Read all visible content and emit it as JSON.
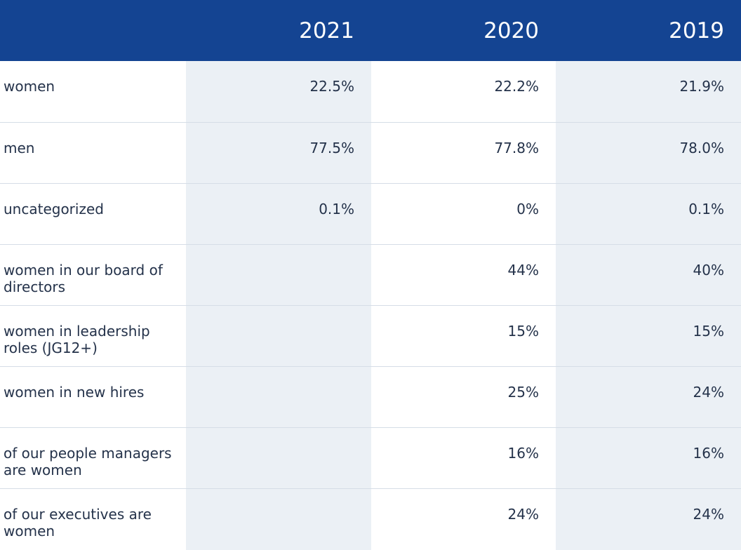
{
  "header": {
    "columns": [
      "2021",
      "2020",
      "2019"
    ]
  },
  "rows": [
    {
      "label": "women",
      "values": [
        "22.5%",
        "22.2%",
        "21.9%"
      ]
    },
    {
      "label": "men",
      "values": [
        "77.5%",
        "77.8%",
        "78.0%"
      ]
    },
    {
      "label": "uncategorized",
      "values": [
        "0.1%",
        "0%",
        "0.1%"
      ]
    },
    {
      "label": "women in our board of directors",
      "values": [
        "",
        "44%",
        "40%"
      ]
    },
    {
      "label": "women in leadership roles (JG12+)",
      "values": [
        "",
        "15%",
        "15%"
      ]
    },
    {
      "label": "women in new hires",
      "values": [
        "",
        "25%",
        "24%"
      ]
    },
    {
      "label": "of our people managers are women",
      "values": [
        "",
        "16%",
        "16%"
      ]
    },
    {
      "label": "of our executives are women",
      "values": [
        "",
        "24%",
        "24%"
      ]
    }
  ],
  "colors": {
    "header_bg": "#144492",
    "shaded_column_bg": "#ebf0f5",
    "text": "#24324a"
  }
}
